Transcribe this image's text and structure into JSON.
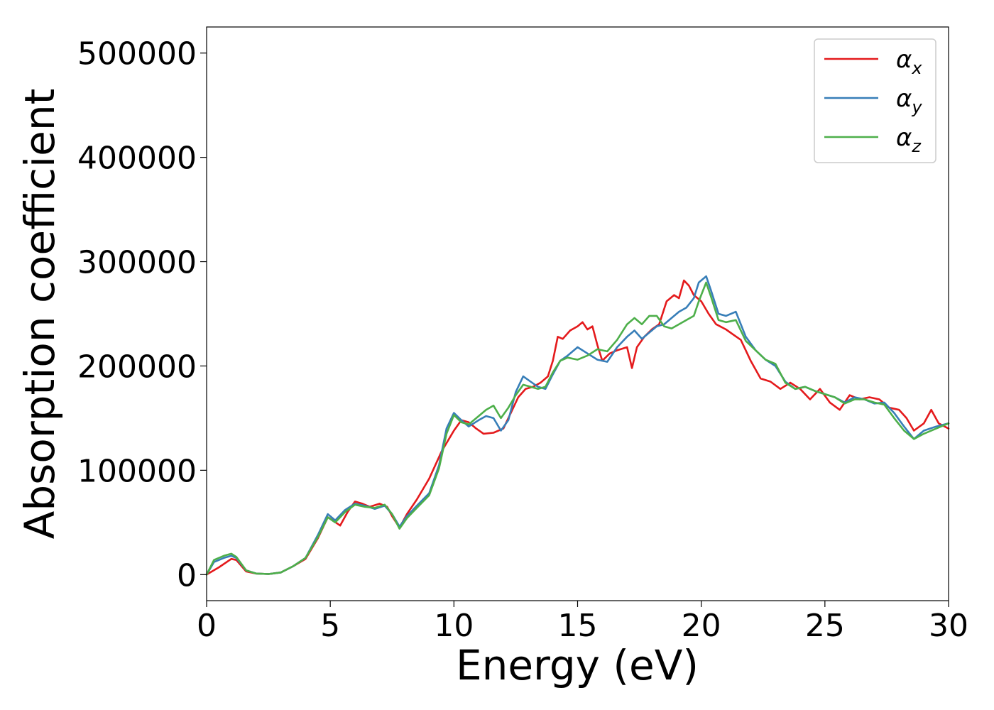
{
  "chart_data": {
    "type": "line",
    "title": "",
    "xlabel": "Energy (eV)",
    "ylabel": "Absorption coefficient",
    "xlim": [
      0,
      30
    ],
    "ylim": [
      -25000,
      525000
    ],
    "x_ticks": [
      0,
      5,
      10,
      15,
      20,
      25,
      30
    ],
    "x_tick_labels": [
      "0",
      "5",
      "10",
      "15",
      "20",
      "25",
      "30"
    ],
    "y_ticks": [
      0,
      100000,
      200000,
      300000,
      400000,
      500000
    ],
    "y_tick_labels": [
      "0",
      "100000",
      "200000",
      "300000",
      "400000",
      "500000"
    ],
    "grid": false,
    "legend_position": "top-right",
    "series": [
      {
        "name": "α",
        "subscript": "x",
        "color": "#e41a1c",
        "x": [
          0,
          0.5,
          1.0,
          1.2,
          1.6,
          2.0,
          2.5,
          3.0,
          3.5,
          4.0,
          4.5,
          4.9,
          5.1,
          5.4,
          5.7,
          6.0,
          6.3,
          6.6,
          7.0,
          7.3,
          7.5,
          7.8,
          8.1,
          8.5,
          9.0,
          9.5,
          10.0,
          10.3,
          10.6,
          10.9,
          11.2,
          11.6,
          12.0,
          12.3,
          12.6,
          12.9,
          13.2,
          13.5,
          13.8,
          14.0,
          14.2,
          14.4,
          14.7,
          15.0,
          15.2,
          15.4,
          15.6,
          15.8,
          16.0,
          16.3,
          16.6,
          17.0,
          17.2,
          17.4,
          17.7,
          18.0,
          18.3,
          18.6,
          18.9,
          19.1,
          19.3,
          19.5,
          19.7,
          20.0,
          20.3,
          20.6,
          21.0,
          21.3,
          21.6,
          22.0,
          22.4,
          22.8,
          23.2,
          23.6,
          24.0,
          24.4,
          24.8,
          25.2,
          25.6,
          26.0,
          26.4,
          26.8,
          27.2,
          27.6,
          28.0,
          28.3,
          28.6,
          29.0,
          29.3,
          29.6,
          30.0
        ],
        "y": [
          0,
          7000,
          15000,
          14000,
          3000,
          1000,
          500,
          2000,
          8000,
          15000,
          35000,
          55000,
          52000,
          47000,
          60000,
          70000,
          68000,
          65000,
          68000,
          65000,
          56000,
          45000,
          58000,
          72000,
          92000,
          118000,
          138000,
          148000,
          146000,
          140000,
          135000,
          136000,
          140000,
          155000,
          170000,
          178000,
          180000,
          184000,
          190000,
          205000,
          228000,
          226000,
          234000,
          238000,
          242000,
          235000,
          238000,
          220000,
          205000,
          212000,
          215000,
          218000,
          198000,
          218000,
          228000,
          235000,
          240000,
          262000,
          268000,
          265000,
          282000,
          277000,
          268000,
          262000,
          250000,
          240000,
          235000,
          230000,
          225000,
          205000,
          188000,
          185000,
          178000,
          184000,
          178000,
          168000,
          178000,
          165000,
          158000,
          172000,
          168000,
          170000,
          168000,
          160000,
          158000,
          150000,
          138000,
          145000,
          158000,
          145000,
          140000
        ]
      },
      {
        "name": "α",
        "subscript": "y",
        "color": "#377eb8",
        "x": [
          0,
          0.3,
          0.7,
          1.0,
          1.2,
          1.6,
          2.0,
          2.5,
          3.0,
          3.5,
          4.0,
          4.5,
          4.9,
          5.2,
          5.6,
          6.0,
          6.4,
          6.8,
          7.2,
          7.5,
          7.8,
          8.1,
          8.5,
          9.0,
          9.4,
          9.7,
          10.0,
          10.3,
          10.6,
          11.0,
          11.3,
          11.6,
          11.9,
          12.2,
          12.5,
          12.8,
          13.1,
          13.4,
          13.7,
          14.0,
          14.3,
          14.6,
          15.0,
          15.4,
          15.8,
          16.2,
          16.6,
          17.0,
          17.3,
          17.6,
          17.9,
          18.2,
          18.5,
          18.8,
          19.1,
          19.4,
          19.7,
          19.9,
          20.2,
          20.4,
          20.7,
          21.0,
          21.4,
          21.8,
          22.2,
          22.6,
          23.0,
          23.4,
          23.8,
          24.2,
          24.6,
          25.0,
          25.4,
          25.8,
          26.2,
          26.6,
          27.0,
          27.4,
          27.8,
          28.2,
          28.6,
          29.0,
          29.5,
          30.0
        ],
        "y": [
          0,
          12000,
          16000,
          18000,
          16000,
          4000,
          1000,
          500,
          2000,
          8000,
          16000,
          38000,
          58000,
          52000,
          62000,
          68000,
          66000,
          63000,
          66000,
          58000,
          46000,
          56000,
          66000,
          78000,
          105000,
          140000,
          155000,
          148000,
          142000,
          148000,
          152000,
          150000,
          138000,
          148000,
          175000,
          190000,
          185000,
          180000,
          178000,
          192000,
          205000,
          210000,
          218000,
          212000,
          206000,
          204000,
          218000,
          228000,
          234000,
          226000,
          232000,
          238000,
          240000,
          246000,
          252000,
          256000,
          265000,
          280000,
          286000,
          272000,
          250000,
          248000,
          252000,
          228000,
          215000,
          206000,
          200000,
          185000,
          178000,
          180000,
          176000,
          173000,
          170000,
          165000,
          170000,
          168000,
          164000,
          165000,
          155000,
          142000,
          130000,
          138000,
          142000,
          145000
        ]
      },
      {
        "name": "α",
        "subscript": "z",
        "color": "#4daf4a",
        "x": [
          0,
          0.3,
          0.7,
          1.0,
          1.2,
          1.6,
          2.0,
          2.5,
          3.0,
          3.5,
          4.0,
          4.5,
          4.9,
          5.2,
          5.6,
          6.0,
          6.4,
          6.8,
          7.2,
          7.5,
          7.8,
          8.1,
          8.5,
          9.0,
          9.4,
          9.7,
          10.0,
          10.3,
          10.6,
          11.0,
          11.3,
          11.6,
          11.9,
          12.2,
          12.5,
          12.8,
          13.1,
          13.4,
          13.7,
          14.0,
          14.3,
          14.6,
          15.0,
          15.4,
          15.8,
          16.2,
          16.6,
          17.0,
          17.3,
          17.6,
          17.9,
          18.2,
          18.5,
          18.8,
          19.1,
          19.4,
          19.7,
          19.9,
          20.2,
          20.4,
          20.7,
          21.0,
          21.4,
          21.8,
          22.2,
          22.6,
          23.0,
          23.4,
          23.8,
          24.2,
          24.6,
          25.0,
          25.4,
          25.8,
          26.2,
          26.6,
          27.0,
          27.4,
          27.8,
          28.2,
          28.6,
          29.0,
          29.5,
          30.0
        ],
        "y": [
          0,
          14000,
          18000,
          20000,
          17000,
          4000,
          1000,
          500,
          2000,
          8000,
          16000,
          36000,
          55000,
          50000,
          60000,
          67000,
          65000,
          64000,
          67000,
          58000,
          44000,
          54000,
          64000,
          76000,
          102000,
          135000,
          153000,
          146000,
          144000,
          152000,
          158000,
          162000,
          150000,
          160000,
          172000,
          182000,
          180000,
          178000,
          180000,
          194000,
          205000,
          208000,
          206000,
          210000,
          216000,
          214000,
          225000,
          240000,
          246000,
          240000,
          248000,
          248000,
          238000,
          236000,
          240000,
          244000,
          248000,
          262000,
          280000,
          266000,
          244000,
          242000,
          244000,
          224000,
          215000,
          206000,
          202000,
          184000,
          178000,
          180000,
          176000,
          173000,
          170000,
          164000,
          168000,
          168000,
          165000,
          163000,
          150000,
          138000,
          130000,
          135000,
          140000,
          145000
        ]
      }
    ]
  }
}
